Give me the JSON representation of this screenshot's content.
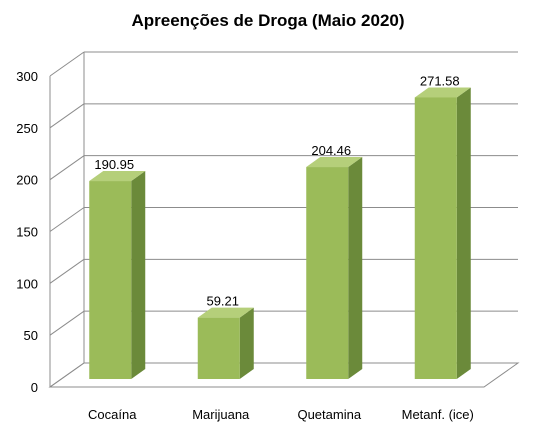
{
  "chart_data": {
    "type": "bar",
    "title": "Apreenções de Droga (Maio 2020)",
    "categories": [
      "Cocaína",
      "Marijuana",
      "Quetamina",
      "Metanf. (ice)"
    ],
    "values": [
      190.95,
      59.21,
      204.46,
      271.58
    ],
    "data_labels": [
      "190.95",
      "59.21",
      "204.46",
      "271.58"
    ],
    "yticks": [
      "0",
      "50",
      "100",
      "150",
      "200",
      "250",
      "300"
    ],
    "ylim": [
      0,
      300
    ],
    "grid": true,
    "legend": "none",
    "style": "3d-column",
    "colors": {
      "bar_front": "#9bbb59",
      "bar_side": "#6b8a3a",
      "bar_top": "#b5cf7a",
      "grid": "#8c8c8c",
      "axis": "#8c8c8c"
    }
  }
}
